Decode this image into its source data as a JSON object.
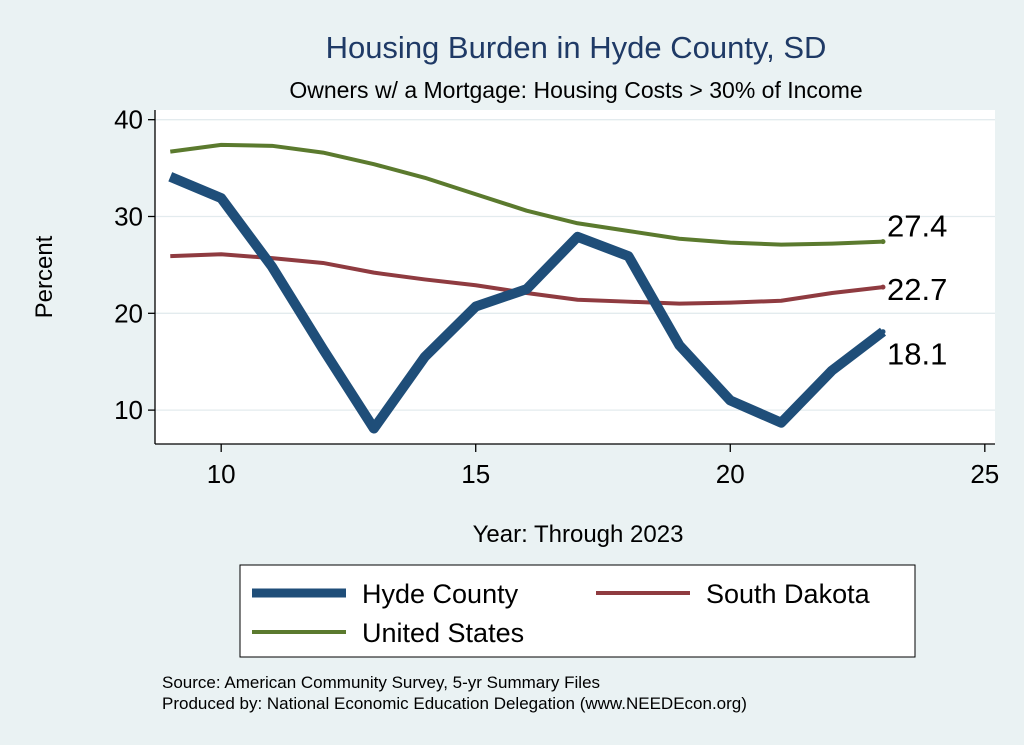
{
  "chart_data": {
    "type": "line",
    "title": "Housing Burden in Hyde County, SD",
    "subtitle": "Owners w/ a Mortgage: Housing Costs > 30% of Income",
    "xlabel": "Year: Through 2023",
    "ylabel": "Percent",
    "xlim": [
      8.7,
      25.2
    ],
    "ylim": [
      6.5,
      41.0
    ],
    "xticks": [
      10,
      15,
      20,
      25
    ],
    "yticks": [
      10,
      20,
      30,
      40
    ],
    "x": [
      9,
      10,
      11,
      12,
      13,
      14,
      15,
      16,
      17,
      18,
      19,
      20,
      21,
      22,
      23
    ],
    "series": [
      {
        "name": "Hyde County",
        "color": "#1f4e79",
        "values": [
          34.1,
          31.9,
          24.8,
          16.3,
          8.1,
          15.5,
          20.7,
          22.5,
          27.9,
          25.9,
          16.7,
          11.0,
          8.7,
          14.1,
          18.1
        ],
        "end_label": "18.1"
      },
      {
        "name": "South Dakota",
        "color": "#8f3b40",
        "values": [
          25.9,
          26.1,
          25.7,
          25.2,
          24.2,
          23.5,
          22.9,
          22.1,
          21.4,
          21.2,
          21.0,
          21.1,
          21.3,
          22.1,
          22.7
        ],
        "end_label": "22.7"
      },
      {
        "name": "United States",
        "color": "#5b7a2e",
        "values": [
          36.7,
          37.4,
          37.3,
          36.6,
          35.4,
          34.0,
          32.3,
          30.6,
          29.3,
          28.5,
          27.7,
          27.3,
          27.1,
          27.2,
          27.4
        ],
        "end_label": "27.4"
      }
    ],
    "legend": [
      "Hyde County",
      "South Dakota",
      "United States"
    ],
    "source_lines": [
      "Source: American Community Survey, 5-yr Summary Files",
      "Produced by: National Economic Education Delegation (www.NEEDEcon.org)"
    ]
  }
}
